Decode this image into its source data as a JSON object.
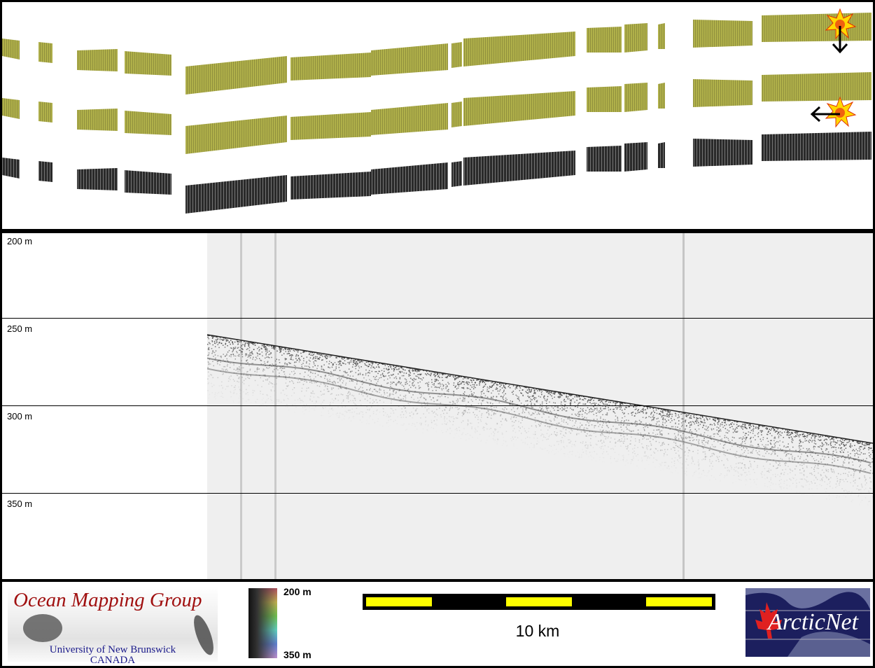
{
  "profile": {
    "depth_labels": [
      "200 m",
      "250 m",
      "300 m",
      "350 m"
    ]
  },
  "legend": {
    "colorbar_top": "200 m",
    "colorbar_bottom": "350 m",
    "scale_label": "10 km",
    "scale_colors": [
      "#ffff00",
      "#000000"
    ]
  },
  "logos": {
    "omg_title": "Ocean Mapping Group",
    "omg_line1": "University of New Brunswick",
    "omg_line2": "CANADA",
    "arcticnet": "ArcticNet"
  },
  "icons": [
    "sun-illumination-icon",
    "arrow-down-icon",
    "arrow-left-icon"
  ],
  "colors": {
    "swath_west": "#a8ad4a",
    "swath_mid": "#4aa89a",
    "swath_east": "#7a80b8",
    "profile_bg": "#efefef"
  }
}
